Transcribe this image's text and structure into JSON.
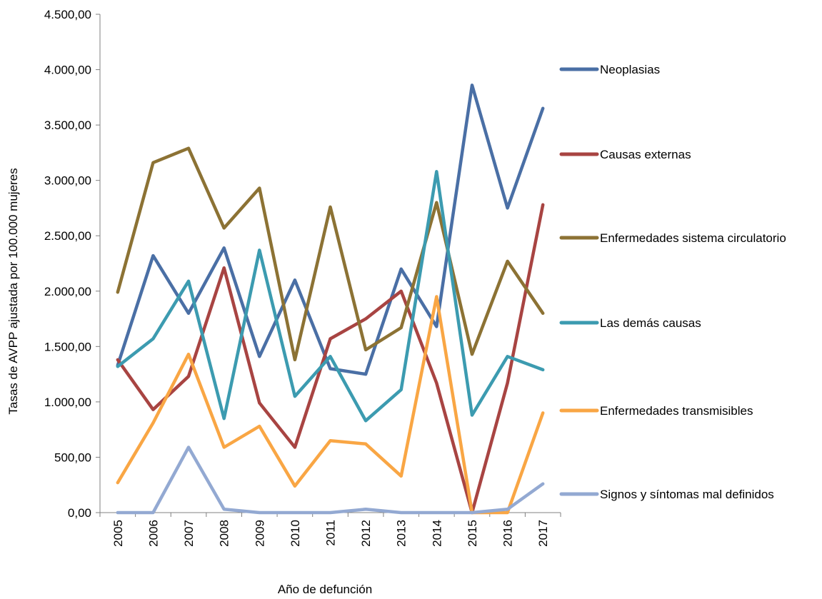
{
  "chart_data": {
    "type": "line",
    "title": "",
    "xlabel": "Año de defunción",
    "ylabel": "Tasas de AVPP ajustada por 100.000 mujeres",
    "ylim": [
      0,
      4500
    ],
    "y_ticks": [
      "0,00",
      "500,00",
      "1.000,00",
      "1.500,00",
      "2.000,00",
      "2.500,00",
      "3.000,00",
      "3.500,00",
      "4.000,00",
      "4.500,00"
    ],
    "grid": false,
    "legend_position": "right",
    "categories": [
      "2005",
      "2006",
      "2007",
      "2008",
      "2009",
      "2010",
      "2011",
      "2012",
      "2013",
      "2014",
      "2015",
      "2016",
      "2017"
    ],
    "series": [
      {
        "name": "Neoplasias",
        "color": "#4a6fa5",
        "values": [
          1330,
          2320,
          1800,
          2390,
          1410,
          2100,
          1300,
          1250,
          2200,
          1680,
          3860,
          2750,
          3650
        ]
      },
      {
        "name": "Causas externas",
        "color": "#a84442",
        "values": [
          1380,
          930,
          1230,
          2210,
          990,
          590,
          1570,
          1750,
          2000,
          1170,
          0,
          1170,
          2780
        ]
      },
      {
        "name": "Enfermedades sistema circulatorio",
        "color": "#8c7234",
        "values": [
          1990,
          3160,
          3290,
          2570,
          2930,
          1380,
          2760,
          1470,
          1670,
          2800,
          1430,
          2270,
          1800
        ]
      },
      {
        "name": "Las demás causas",
        "color": "#3c9bb0",
        "values": [
          1320,
          1570,
          2090,
          850,
          2370,
          1050,
          1410,
          830,
          1110,
          3080,
          880,
          1410,
          1290
        ]
      },
      {
        "name": "Enfermedades transmisibles",
        "color": "#f9a644",
        "values": [
          270,
          810,
          1430,
          590,
          780,
          240,
          650,
          620,
          330,
          1950,
          0,
          0,
          900
        ]
      },
      {
        "name": "Signos y síntomas mal definidos",
        "color": "#93a9d2",
        "values": [
          0,
          0,
          590,
          30,
          0,
          0,
          0,
          30,
          0,
          0,
          0,
          30,
          260
        ]
      }
    ]
  }
}
